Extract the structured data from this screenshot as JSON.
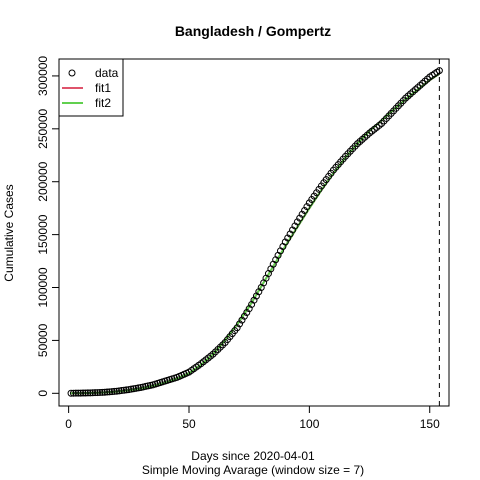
{
  "chart_data": {
    "type": "line",
    "title": "Bangladesh / Gompertz",
    "xlabel": "Days since 2020-04-01",
    "subtitle": "Simple Moving Avarage (window size = 7)",
    "ylabel": "Cumulative Cases",
    "xlim": [
      -4,
      158
    ],
    "ylim": [
      -12000,
      316000
    ],
    "xticks": [
      0,
      50,
      100,
      150
    ],
    "yticks": [
      0,
      50000,
      100000,
      150000,
      200000,
      250000,
      300000
    ],
    "vline_x": 154,
    "legend_position": "top-left",
    "legend": [
      {
        "label": "data",
        "kind": "circle"
      },
      {
        "label": "fit1",
        "kind": "line",
        "color": "#DF536B"
      },
      {
        "label": "fit2",
        "kind": "line",
        "color": "#61D04F"
      }
    ],
    "series": [
      {
        "name": "data",
        "kind": "points",
        "color": "#000000",
        "x": [
          1,
          5,
          10,
          15,
          20,
          25,
          30,
          35,
          40,
          45,
          50,
          55,
          60,
          65,
          70,
          75,
          80,
          85,
          90,
          95,
          100,
          105,
          110,
          115,
          120,
          125,
          130,
          135,
          140,
          145,
          150,
          154
        ],
        "y": [
          50,
          200,
          500,
          1000,
          2000,
          3500,
          5500,
          8000,
          11500,
          15000,
          20000,
          28000,
          37000,
          48000,
          62000,
          80000,
          100000,
          122000,
          143000,
          162000,
          180000,
          196000,
          211000,
          224000,
          236000,
          246000,
          255000,
          267000,
          279000,
          289000,
          299000,
          305000
        ]
      },
      {
        "name": "fit1",
        "kind": "line",
        "color": "#DF536B",
        "x": [
          1,
          5,
          10,
          15,
          20,
          25,
          30,
          35,
          40,
          45,
          50,
          55,
          60,
          65,
          70,
          75,
          80,
          85,
          90,
          95,
          100,
          105,
          110,
          115,
          120,
          125,
          130,
          135,
          140,
          145,
          150,
          154
        ],
        "y": [
          30,
          120,
          350,
          800,
          1600,
          2800,
          4500,
          7000,
          10000,
          14000,
          19000,
          27000,
          37000,
          50000,
          65000,
          82000,
          101000,
          120000,
          139000,
          157000,
          175000,
          192000,
          208000,
          223000,
          236000,
          248000,
          258000,
          268000,
          278000,
          287000,
          296000,
          302000
        ]
      },
      {
        "name": "fit2",
        "kind": "line",
        "color": "#61D04F",
        "x": [
          1,
          5,
          10,
          15,
          20,
          25,
          30,
          35,
          40,
          45,
          50,
          55,
          60,
          65,
          70,
          75,
          80,
          85,
          90,
          95,
          100,
          105,
          110,
          115,
          120,
          125,
          130,
          135,
          140,
          145,
          150,
          154
        ],
        "y": [
          30,
          120,
          350,
          800,
          1600,
          2800,
          4500,
          7000,
          10000,
          14000,
          19000,
          27000,
          37000,
          50000,
          65000,
          82000,
          101000,
          120000,
          139000,
          157000,
          175000,
          192000,
          208000,
          223000,
          236000,
          248000,
          258000,
          268000,
          278000,
          287000,
          296000,
          302000
        ]
      }
    ]
  }
}
